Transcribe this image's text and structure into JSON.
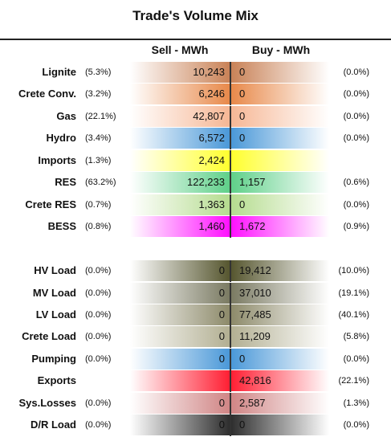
{
  "title": "Trade's Volume Mix",
  "headers": {
    "sell": "Sell - MWh",
    "buy": "Buy - MWh"
  },
  "sections": [
    {
      "rows": [
        {
          "label": "Lignite",
          "sell_pct": "(5.3%)",
          "sell": "10,243",
          "buy": "0",
          "buy_pct": "(0.0%)",
          "color": "#c98257"
        },
        {
          "label": "Crete Conv.",
          "sell_pct": "(3.2%)",
          "sell": "6,246",
          "buy": "0",
          "buy_pct": "(0.0%)",
          "color": "#e8894a"
        },
        {
          "label": "Gas",
          "sell_pct": "(22.1%)",
          "sell": "42,807",
          "buy": "0",
          "buy_pct": "(0.0%)",
          "color": "#f6b795"
        },
        {
          "label": "Hydro",
          "sell_pct": "(3.4%)",
          "sell": "6,572",
          "buy": "0",
          "buy_pct": "(0.0%)",
          "color": "#4a98d8"
        },
        {
          "label": "Imports",
          "sell_pct": "(1.3%)",
          "sell": "2,424",
          "color": "#ffff2e"
        },
        {
          "label": "RES",
          "sell_pct": "(63.2%)",
          "sell": "122,233",
          "buy": "1,157",
          "buy_pct": "(0.6%)",
          "color": "#5fd089"
        },
        {
          "label": "Crete RES",
          "sell_pct": "(0.7%)",
          "sell": "1,363",
          "buy": "0",
          "buy_pct": "(0.0%)",
          "color": "#b5dc8f"
        },
        {
          "label": "BESS",
          "sell_pct": "(0.8%)",
          "sell": "1,460",
          "buy": "1,672",
          "buy_pct": "(0.9%)",
          "color": "#ff10ff"
        }
      ]
    },
    {
      "rows": [
        {
          "label": "HV Load",
          "sell_pct": "(0.0%)",
          "sell": "0",
          "buy": "19,412",
          "buy_pct": "(10.0%)",
          "color": "#56562f"
        },
        {
          "label": "MV Load",
          "sell_pct": "(0.0%)",
          "sell": "0",
          "buy": "37,010",
          "buy_pct": "(19.1%)",
          "color": "#7a7a62"
        },
        {
          "label": "LV Load",
          "sell_pct": "(0.0%)",
          "sell": "0",
          "buy": "77,485",
          "buy_pct": "(40.1%)",
          "color": "#8d8a6a"
        },
        {
          "label": "Crete Load",
          "sell_pct": "(0.0%)",
          "sell": "0",
          "buy": "11,209",
          "buy_pct": "(5.8%)",
          "color": "#b2af92"
        },
        {
          "label": "Pumping",
          "sell_pct": "(0.0%)",
          "sell": "0",
          "buy": "0",
          "buy_pct": "(0.0%)",
          "color": "#4a98d8"
        },
        {
          "label": "Exports",
          "buy": "42,816",
          "buy_pct": "(22.1%)",
          "color": "#ff1f33"
        },
        {
          "label": "Sys.Losses",
          "sell_pct": "(0.0%)",
          "sell": "0",
          "buy": "2,587",
          "buy_pct": "(1.3%)",
          "color": "#d08585"
        },
        {
          "label": "D/R Load",
          "sell_pct": "(0.0%)",
          "sell": "0",
          "buy": "0",
          "buy_pct": "(0.0%)",
          "color": "#2e2e2e"
        }
      ]
    }
  ]
}
